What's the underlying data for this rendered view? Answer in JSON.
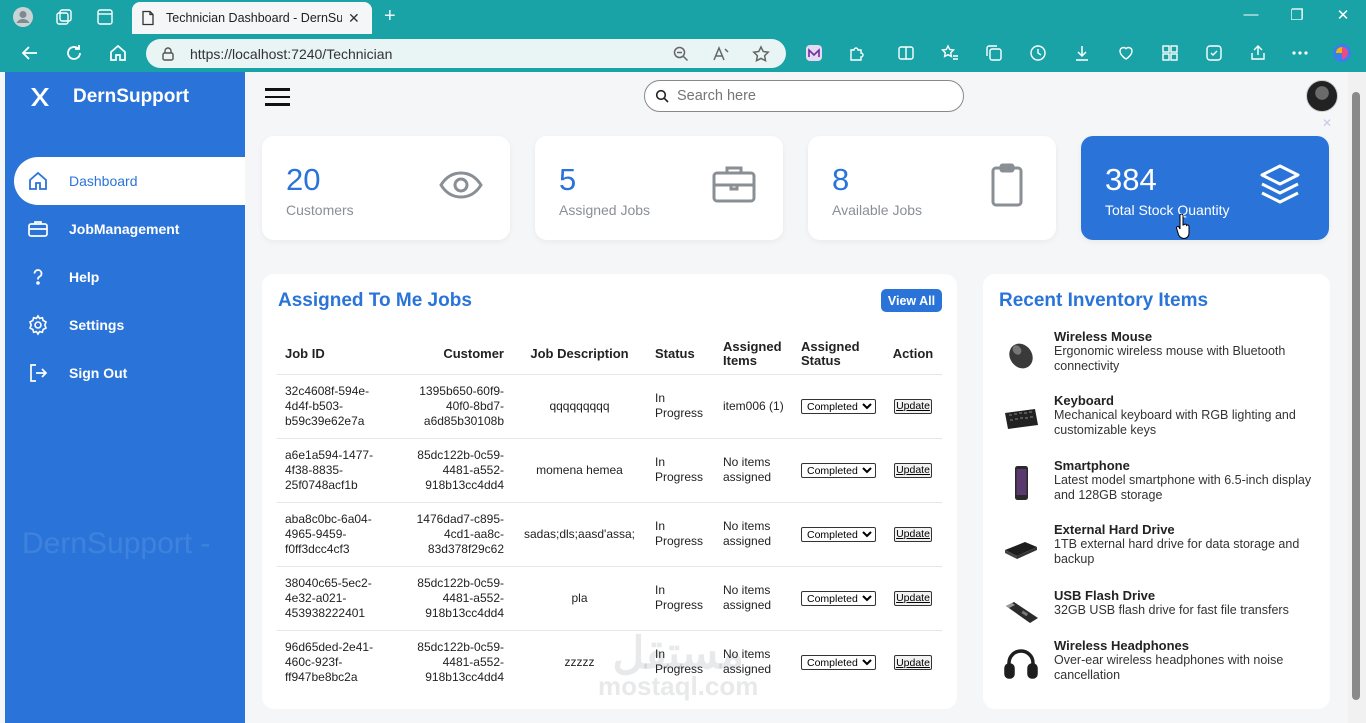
{
  "browser": {
    "tab_title": "Technician Dashboard - DernSupport",
    "url": "https://localhost:7240/Technician"
  },
  "sidebar": {
    "brand": "DernSupport",
    "items": [
      {
        "label": "Dashboard",
        "icon": "home-icon",
        "active": true
      },
      {
        "label": "JobManagement",
        "icon": "briefcase-icon",
        "active": false
      },
      {
        "label": "Help",
        "icon": "help-icon",
        "active": false
      },
      {
        "label": "Settings",
        "icon": "gear-icon",
        "active": false
      },
      {
        "label": "Sign Out",
        "icon": "sign-out-icon",
        "active": false
      }
    ]
  },
  "header": {
    "search_placeholder": "Search here"
  },
  "stats": [
    {
      "value": "20",
      "label": "Customers",
      "icon": "eye-icon"
    },
    {
      "value": "5",
      "label": "Assigned Jobs",
      "icon": "briefcase-icon"
    },
    {
      "value": "8",
      "label": "Available Jobs",
      "icon": "clipboard-icon"
    },
    {
      "value": "384",
      "label": "Total Stock Quantity",
      "icon": "layers-icon"
    }
  ],
  "jobs": {
    "title": "Assigned To Me Jobs",
    "view_all": "View All",
    "columns": [
      "Job ID",
      "Customer",
      "Job Description",
      "Status",
      "Assigned Items",
      "Assigned Status",
      "Action"
    ],
    "rows": [
      {
        "id": "32c4608f-594e-4d4f-b503-b59c39e62e7a",
        "customer": "1395b650-60f9-40f0-8bd7-a6d85b30108b",
        "desc": "qqqqqqqqq",
        "status": "In Progress",
        "items": "item006 (1)",
        "assigned_status": "Completed",
        "action": "Update"
      },
      {
        "id": "a6e1a594-1477-4f38-8835-25f0748acf1b",
        "customer": "85dc122b-0c59-4481-a552-918b13cc4dd4",
        "desc": "momena hemea",
        "status": "In Progress",
        "items": "No items assigned",
        "assigned_status": "Completed",
        "action": "Update"
      },
      {
        "id": "aba8c0bc-6a04-4965-9459-f0ff3dcc4cf3",
        "customer": "1476dad7-c895-4cd1-aa8c-83d378f29c62",
        "desc": "sadas;dls;aasd'assa;",
        "status": "In Progress",
        "items": "No items assigned",
        "assigned_status": "Completed",
        "action": "Update"
      },
      {
        "id": "38040c65-5ec2-4e32-a021-453938222401",
        "customer": "85dc122b-0c59-4481-a552-918b13cc4dd4",
        "desc": "pla",
        "status": "In Progress",
        "items": "No items assigned",
        "assigned_status": "Completed",
        "action": "Update"
      },
      {
        "id": "96d65ded-2e41-460c-923f-ff947be8bc2a",
        "customer": "85dc122b-0c59-4481-a552-918b13cc4dd4",
        "desc": "zzzzz",
        "status": "In Progress",
        "items": "No items assigned",
        "assigned_status": "Completed",
        "action": "Update"
      }
    ]
  },
  "inventory": {
    "title": "Recent Inventory Items",
    "items": [
      {
        "name": "Wireless Mouse",
        "desc": "Ergonomic wireless mouse with Bluetooth connectivity",
        "icon": "mouse-icon"
      },
      {
        "name": "Keyboard",
        "desc": "Mechanical keyboard with RGB lighting and customizable keys",
        "icon": "keyboard-icon"
      },
      {
        "name": "Smartphone",
        "desc": "Latest model smartphone with 6.5-inch display and 128GB storage",
        "icon": "smartphone-icon"
      },
      {
        "name": "External Hard Drive",
        "desc": "1TB external hard drive for data storage and backup",
        "icon": "hard-drive-icon"
      },
      {
        "name": "USB Flash Drive",
        "desc": "32GB USB flash drive for fast file transfers",
        "icon": "usb-drive-icon"
      },
      {
        "name": "Wireless Headphones",
        "desc": "Over-ear wireless headphones with noise cancellation",
        "icon": "headphones-icon"
      }
    ]
  },
  "overlay": {
    "ghost_brand": "DernSupport -",
    "watermark_ar": "مستقل",
    "watermark_en": "mostaql.com"
  },
  "colors": {
    "accent": "#2a74d9",
    "chrome": "#1aa3a6"
  }
}
